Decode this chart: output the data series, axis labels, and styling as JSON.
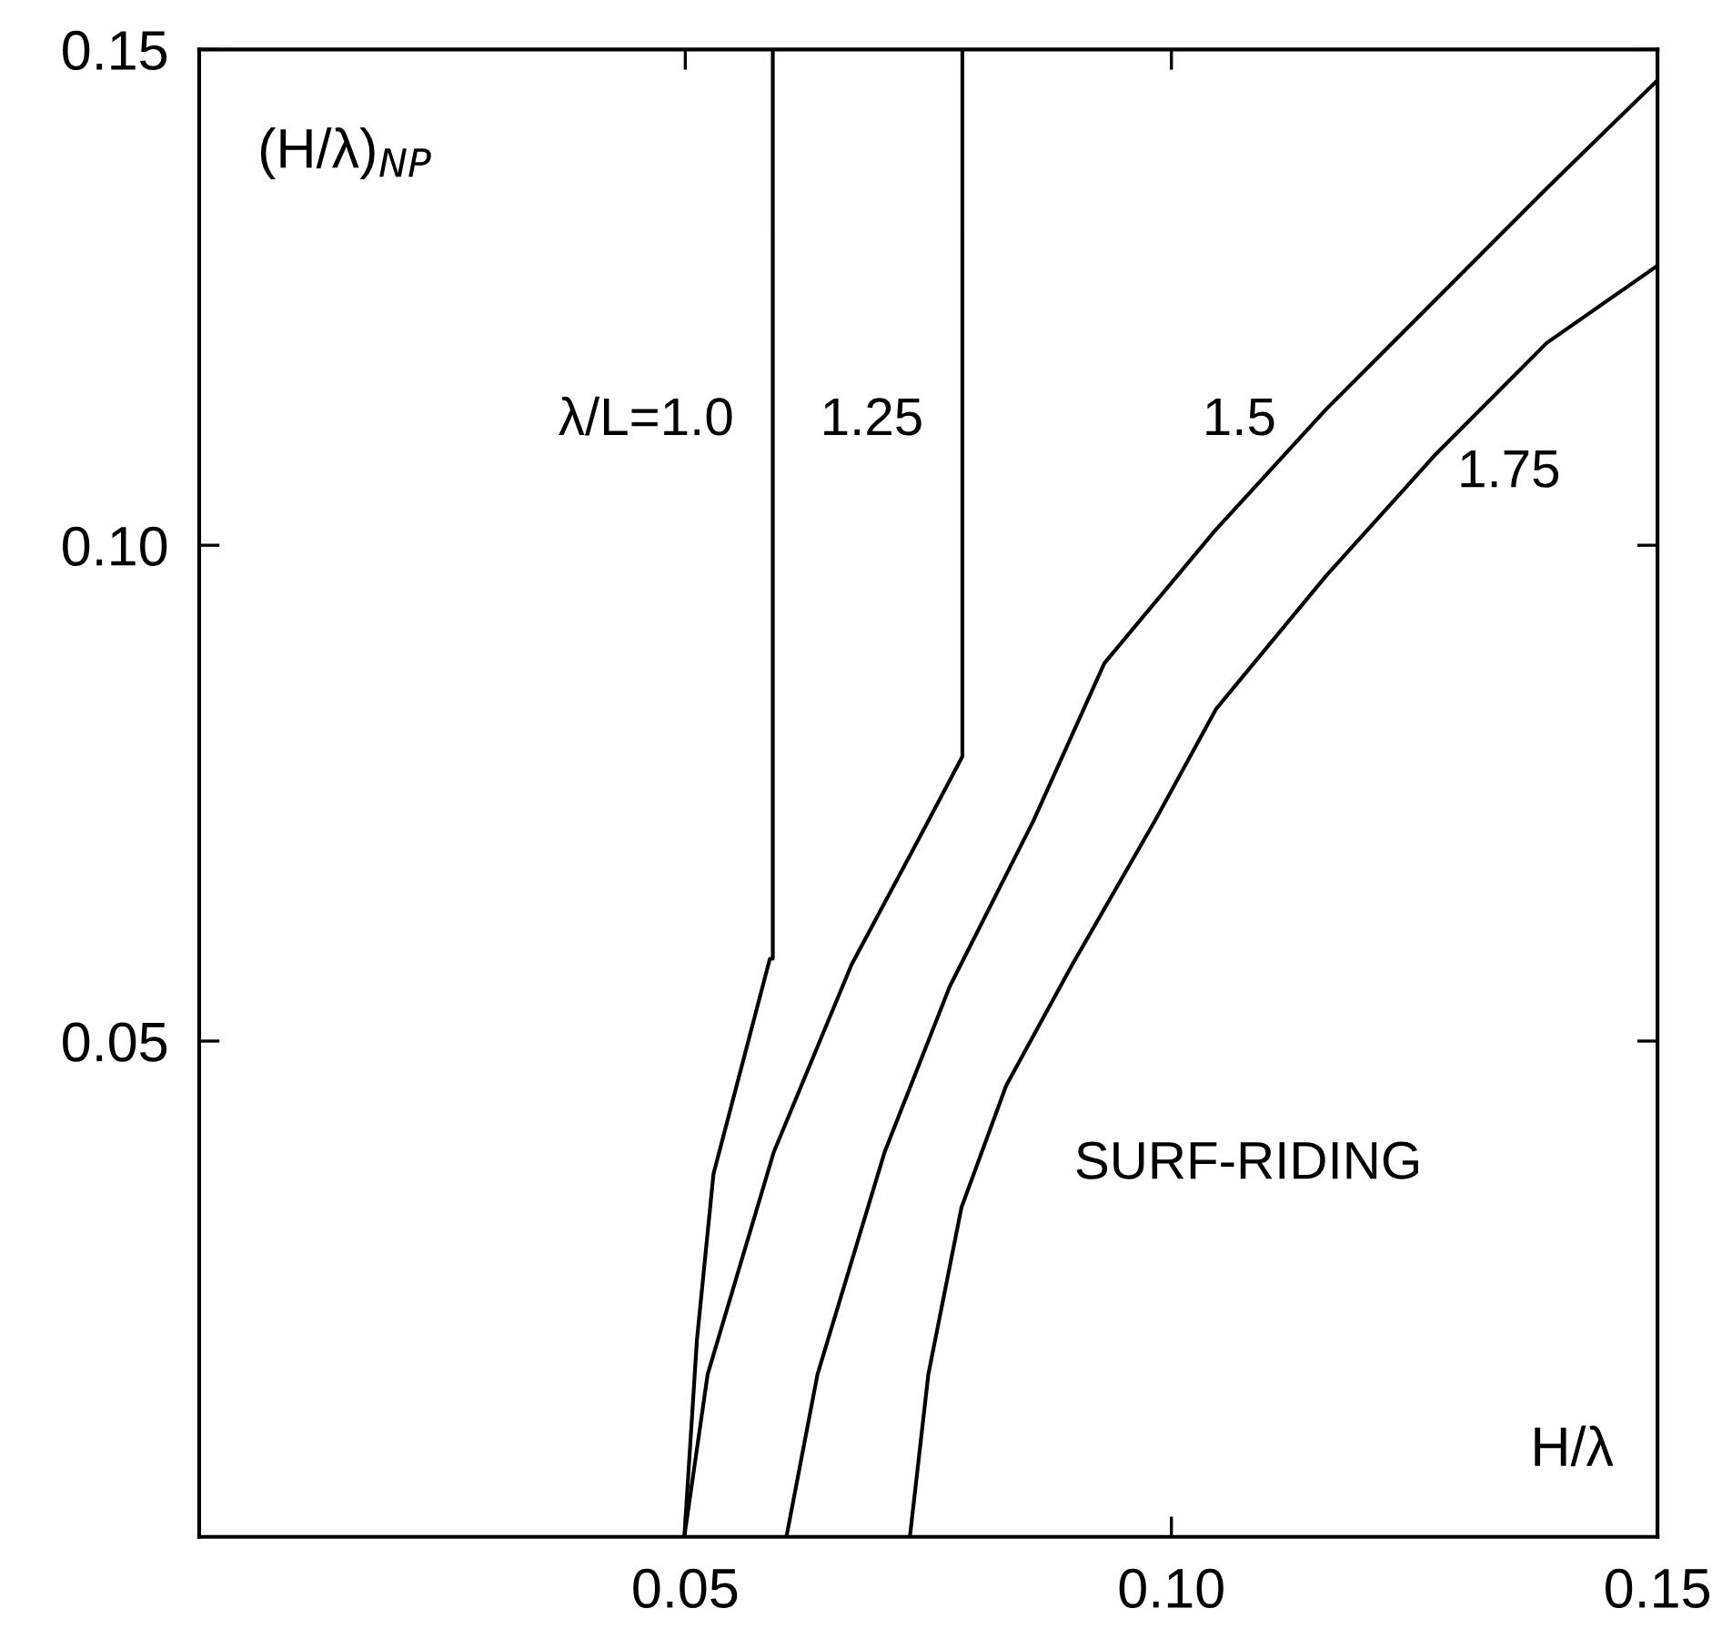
{
  "chart_data": {
    "type": "line",
    "xlabel": "H/λ",
    "ylabel": "(H/λ)$_{NP}$",
    "annotations": [
      "SURF-RIDING"
    ],
    "xlim": [
      0,
      0.15
    ],
    "ylim": [
      0,
      0.15
    ],
    "xticks": [
      {
        "value": 0.05,
        "label": "0.05"
      },
      {
        "value": 0.1,
        "label": "0.10"
      },
      {
        "value": 0.15,
        "label": "0.15"
      }
    ],
    "yticks": [
      {
        "value": 0.05,
        "label": "0.05"
      },
      {
        "value": 0.1,
        "label": "0.10"
      },
      {
        "value": 0.15,
        "label": "0.15"
      }
    ],
    "grid": false,
    "legend": false,
    "marker": "none",
    "line_style": "solid",
    "series": [
      {
        "name": "λ/L=1.0",
        "color": "#000000",
        "x": [
          0.0499,
          0.0512,
          0.0529,
          0.0587,
          0.059,
          0.059
        ],
        "values": [
          0,
          0.0199,
          0.0366,
          0.0583,
          0.0583,
          0.15
        ]
      },
      {
        "name": "1.25",
        "color": "#000000",
        "x": [
          0.0499,
          0.0523,
          0.0591,
          0.0671,
          0.075,
          0.0785,
          0.0785
        ],
        "values": [
          0,
          0.0164,
          0.0388,
          0.0577,
          0.0722,
          0.0787,
          0.15
        ]
      },
      {
        "name": "1.5",
        "color": "#000000",
        "x": [
          0.0604,
          0.0636,
          0.0705,
          0.0772,
          0.0858,
          0.0931,
          0.1045,
          0.1159,
          0.1272,
          0.1386,
          0.15
        ],
        "values": [
          0,
          0.0164,
          0.0388,
          0.0555,
          0.0722,
          0.0881,
          0.1015,
          0.1137,
          0.1248,
          0.136,
          0.1469
        ]
      },
      {
        "name": "1.75",
        "color": "#000000",
        "x": [
          0.0731,
          0.075,
          0.0784,
          0.083,
          0.0898,
          0.0983,
          0.1046,
          0.1159,
          0.1272,
          0.1386,
          0.15
        ],
        "values": [
          0,
          0.0164,
          0.0332,
          0.0455,
          0.0577,
          0.0722,
          0.0835,
          0.0969,
          0.1092,
          0.1204,
          0.1282
        ]
      }
    ]
  }
}
